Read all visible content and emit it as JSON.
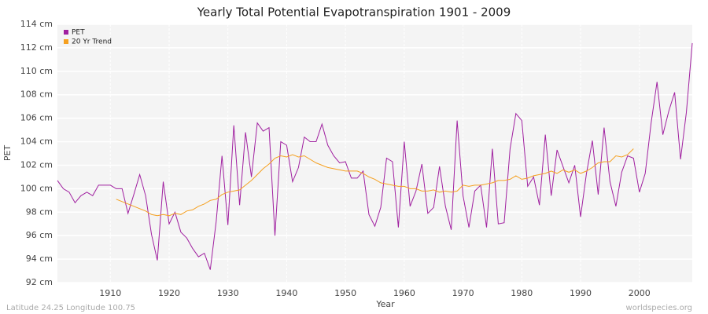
{
  "chart_data": {
    "type": "line",
    "title": "Yearly Total Potential Evapotranspiration 1901 - 2009",
    "x_label": "Year",
    "y_label": "PET",
    "footer_left": "Latitude 24.25 Longitude 100.75",
    "footer_right": "worldspecies.org",
    "x": [
      1901,
      1902,
      1903,
      1904,
      1905,
      1906,
      1907,
      1908,
      1909,
      1910,
      1911,
      1912,
      1913,
      1914,
      1915,
      1916,
      1917,
      1918,
      1919,
      1920,
      1921,
      1922,
      1923,
      1924,
      1925,
      1926,
      1927,
      1928,
      1929,
      1930,
      1931,
      1932,
      1933,
      1934,
      1935,
      1936,
      1937,
      1938,
      1939,
      1940,
      1941,
      1942,
      1943,
      1944,
      1945,
      1946,
      1947,
      1948,
      1949,
      1950,
      1951,
      1952,
      1953,
      1954,
      1955,
      1956,
      1957,
      1958,
      1959,
      1960,
      1961,
      1962,
      1963,
      1964,
      1965,
      1966,
      1967,
      1968,
      1969,
      1970,
      1971,
      1972,
      1973,
      1974,
      1975,
      1976,
      1977,
      1978,
      1979,
      1980,
      1981,
      1982,
      1983,
      1984,
      1985,
      1986,
      1987,
      1988,
      1989,
      1990,
      1991,
      1992,
      1993,
      1994,
      1995,
      1996,
      1997,
      1998,
      1999,
      2000,
      2001,
      2002,
      2003,
      2004,
      2005,
      2006,
      2007,
      2008,
      2009
    ],
    "series": [
      {
        "name": "PET",
        "color": "#a020a0",
        "values": [
          100.7,
          100.0,
          99.7,
          98.8,
          99.4,
          99.7,
          99.4,
          100.3,
          100.3,
          100.3,
          100.0,
          100.0,
          97.9,
          99.5,
          101.2,
          99.4,
          96.1,
          93.9,
          100.6,
          97.0,
          98.0,
          96.3,
          95.8,
          94.9,
          94.2,
          94.5,
          93.1,
          97.2,
          102.8,
          96.9,
          105.4,
          98.6,
          104.8,
          101.0,
          105.6,
          104.9,
          105.2,
          96.0,
          104.0,
          103.7,
          100.6,
          101.8,
          104.4,
          104.0,
          104.0,
          105.5,
          103.7,
          102.8,
          102.2,
          102.3,
          100.9,
          100.9,
          101.5,
          97.8,
          96.8,
          98.4,
          102.6,
          102.3,
          96.7,
          104.0,
          98.5,
          99.8,
          102.1,
          97.9,
          98.4,
          101.9,
          98.5,
          96.5,
          105.8,
          99.4,
          96.7,
          99.8,
          100.3,
          96.7,
          103.4,
          97.0,
          97.1,
          103.4,
          106.4,
          105.8,
          100.2,
          101.0,
          98.6,
          104.6,
          99.4,
          103.3,
          101.9,
          100.5,
          102.0,
          97.6,
          101.3,
          104.1,
          99.5,
          105.2,
          100.6,
          98.5,
          101.4,
          102.8,
          102.6,
          99.7,
          101.3,
          105.6,
          109.1,
          104.6,
          106.6,
          108.2,
          102.5,
          106.5,
          112.4
        ]
      },
      {
        "name": "20 Yr Trend",
        "color": "#f5a020",
        "values": [
          null,
          null,
          null,
          null,
          null,
          null,
          null,
          null,
          null,
          null,
          99.1,
          98.9,
          98.7,
          98.5,
          98.3,
          98.1,
          97.8,
          97.7,
          97.8,
          97.7,
          97.9,
          97.8,
          98.1,
          98.2,
          98.5,
          98.7,
          99.0,
          99.1,
          99.5,
          99.7,
          99.8,
          99.9,
          100.3,
          100.7,
          101.2,
          101.7,
          102.1,
          102.6,
          102.8,
          102.7,
          102.9,
          102.7,
          102.8,
          102.5,
          102.2,
          102.0,
          101.8,
          101.7,
          101.6,
          101.5,
          101.5,
          101.5,
          101.3,
          101.0,
          100.8,
          100.5,
          100.4,
          100.3,
          100.2,
          100.2,
          100.0,
          100.0,
          99.8,
          99.8,
          99.9,
          99.7,
          99.8,
          99.7,
          99.8,
          100.3,
          100.2,
          100.3,
          100.3,
          100.4,
          100.5,
          100.7,
          100.7,
          100.8,
          101.1,
          100.8,
          100.9,
          101.1,
          101.2,
          101.3,
          101.5,
          101.3,
          101.6,
          101.4,
          101.6,
          101.3,
          101.5,
          101.8,
          102.2,
          102.3,
          102.3,
          102.8,
          102.7,
          102.9,
          103.4,
          null,
          null,
          null,
          null,
          null,
          null,
          null,
          null,
          null,
          null
        ]
      }
    ],
    "xlim": [
      1901,
      2009
    ],
    "xticks": [
      1910,
      1920,
      1930,
      1940,
      1950,
      1960,
      1970,
      1980,
      1990,
      2000
    ],
    "ylim": [
      92,
      114
    ],
    "yticks": [
      {
        "value": 92,
        "label": "92 cm"
      },
      {
        "value": 94,
        "label": "94 cm"
      },
      {
        "value": 96,
        "label": "96 cm"
      },
      {
        "value": 98,
        "label": "98 cm"
      },
      {
        "value": 100,
        "label": "100 cm"
      },
      {
        "value": 102,
        "label": "102 cm"
      },
      {
        "value": 104,
        "label": "104 cm"
      },
      {
        "value": 106,
        "label": "106 cm"
      },
      {
        "value": 108,
        "label": "108 cm"
      },
      {
        "value": 110,
        "label": "110 cm"
      },
      {
        "value": 112,
        "label": "112 cm"
      },
      {
        "value": 114,
        "label": "114 cm"
      }
    ],
    "grid": true,
    "legend": "top-left"
  }
}
